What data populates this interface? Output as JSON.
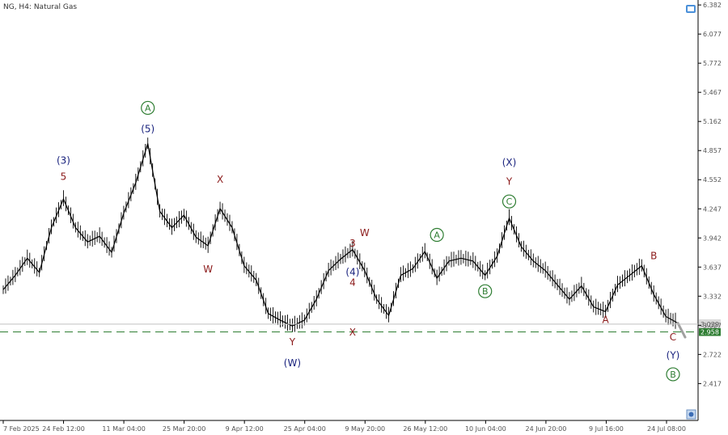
{
  "header": {
    "symbol_label": "NG, H4:  Natural Gas"
  },
  "colors": {
    "bar": "#000000",
    "navy": "#1a237e",
    "maroon": "#8b1a1a",
    "green": "#2e7d32",
    "support_line": "#2e7d32",
    "price_line": "#c0c0c0",
    "projection": "#a0a0a0"
  },
  "chart_data": {
    "type": "line",
    "title": "NG, H4:  Natural Gas",
    "ylim": [
      2.2,
      6.4
    ],
    "x_tick_labels": [
      "7 Feb 2025",
      "24 Feb 12:00",
      "11 Mar 04:00",
      "25 Mar 20:00",
      "9 Apr 12:00",
      "25 Apr 04:00",
      "9 May 20:00",
      "26 May 12:00",
      "10 Jun 04:00",
      "24 Jun 20:00",
      "9 Jul 16:00",
      "24 Jul 08:00"
    ],
    "y_tick_labels": [
      6.382,
      6.077,
      5.772,
      5.467,
      5.162,
      4.857,
      4.552,
      4.247,
      3.942,
      3.637,
      3.332,
      3.027,
      2.722,
      2.417
    ],
    "series": [
      {
        "x": [
          "7 Feb 2025",
          "10 Feb",
          "13 Feb",
          "16 Feb",
          "19 Feb",
          "22 Feb",
          "24 Feb",
          "27 Feb",
          "2 Mar",
          "5 Mar",
          "7 Mar",
          "10 Mar",
          "13 Mar",
          "16 Mar",
          "19 Mar",
          "22 Mar",
          "25 Mar",
          "28 Mar",
          "31 Mar",
          "3 Apr",
          "6 Apr",
          "9 Apr",
          "12 Apr",
          "15 Apr",
          "18 Apr",
          "22 Apr",
          "25 Apr",
          "28 Apr",
          "2 May",
          "5 May",
          "9 May",
          "12 May",
          "15 May",
          "18 May",
          "21 May",
          "24 May",
          "26 May",
          "29 May",
          "1 Jun",
          "4 Jun",
          "7 Jun",
          "10 Jun",
          "13 Jun",
          "16 Jun",
          "19 Jun",
          "22 Jun",
          "24 Jun",
          "27 Jun",
          "1 Jul",
          "4 Jul",
          "7 Jul",
          "9 Jul",
          "12 Jul",
          "15 Jul",
          "18 Jul",
          "21 Jul",
          "24 Jul"
        ],
        "values": [
          3.4,
          3.55,
          3.73,
          3.58,
          4.05,
          4.35,
          4.05,
          3.9,
          3.96,
          3.79,
          4.2,
          4.52,
          4.93,
          4.22,
          4.05,
          4.18,
          3.95,
          3.86,
          4.25,
          4.05,
          3.65,
          3.5,
          3.15,
          3.08,
          3.02,
          3.08,
          3.3,
          3.6,
          3.72,
          3.82,
          3.6,
          3.3,
          3.13,
          3.55,
          3.62,
          3.8,
          3.52,
          3.7,
          3.73,
          3.7,
          3.55,
          3.75,
          4.15,
          3.85,
          3.7,
          3.6,
          3.45,
          3.3,
          3.44,
          3.22,
          3.17,
          3.45,
          3.55,
          3.65,
          3.35,
          3.12,
          3.05
        ]
      }
    ],
    "projection_values": [
      3.05,
      2.97
    ],
    "support_level": 2.958,
    "current_price": 3.039,
    "wave_labels": [
      {
        "text": "3",
        "color": "maroon",
        "x": "12 Feb",
        "y": 3.85
      },
      {
        "text": "4",
        "color": "maroon",
        "x": "15 Feb",
        "y": 3.44
      },
      {
        "text": "5",
        "color": "maroon",
        "x": "22 Feb",
        "y": 4.55
      },
      {
        "text": "(3)",
        "color": "navy",
        "x": "22 Feb",
        "y": 4.72
      },
      {
        "text": "(4)",
        "color": "navy",
        "x": "3 Mar",
        "y": 3.55
      },
      {
        "text": "(5)",
        "color": "navy",
        "x": "13 Mar",
        "y": 5.05
      },
      {
        "text": "A",
        "color": "green",
        "circled": true,
        "x": "13 Mar",
        "y": 5.27
      },
      {
        "text": "X",
        "color": "maroon",
        "x": "31 Mar",
        "y": 4.52
      },
      {
        "text": "W",
        "color": "maroon",
        "x": "28 Mar",
        "y": 3.58
      },
      {
        "text": "Y",
        "color": "maroon",
        "x": "18 Apr",
        "y": 2.82
      },
      {
        "text": "(W)",
        "color": "navy",
        "x": "18 Apr",
        "y": 2.6
      },
      {
        "text": "W",
        "color": "maroon",
        "x": "9 May",
        "y": 3.96
      },
      {
        "text": "X",
        "color": "maroon",
        "x": "16 May",
        "y": 2.92
      },
      {
        "text": "A",
        "color": "green",
        "circled": true,
        "x": "26 May",
        "y": 3.94
      },
      {
        "text": "B",
        "color": "green",
        "circled": true,
        "x": "7 Jun",
        "y": 3.35
      },
      {
        "text": "C",
        "color": "green",
        "circled": true,
        "x": "13 Jun",
        "y": 4.29
      },
      {
        "text": "Y",
        "color": "maroon",
        "x": "13 Jun",
        "y": 4.5
      },
      {
        "text": "(X)",
        "color": "navy",
        "x": "13 Jun",
        "y": 4.7
      },
      {
        "text": "A",
        "color": "maroon",
        "x": "7 Jul",
        "y": 3.05
      },
      {
        "text": "B",
        "color": "maroon",
        "x": "18 Jul",
        "y": 3.72
      },
      {
        "text": "C",
        "color": "maroon",
        "x": "25 Jul",
        "y": 2.87
      },
      {
        "text": "(Y)",
        "color": "navy",
        "x": "25 Jul",
        "y": 2.68
      },
      {
        "text": "B",
        "color": "green",
        "circled": true,
        "x": "25 Jul",
        "y": 2.48
      }
    ]
  }
}
